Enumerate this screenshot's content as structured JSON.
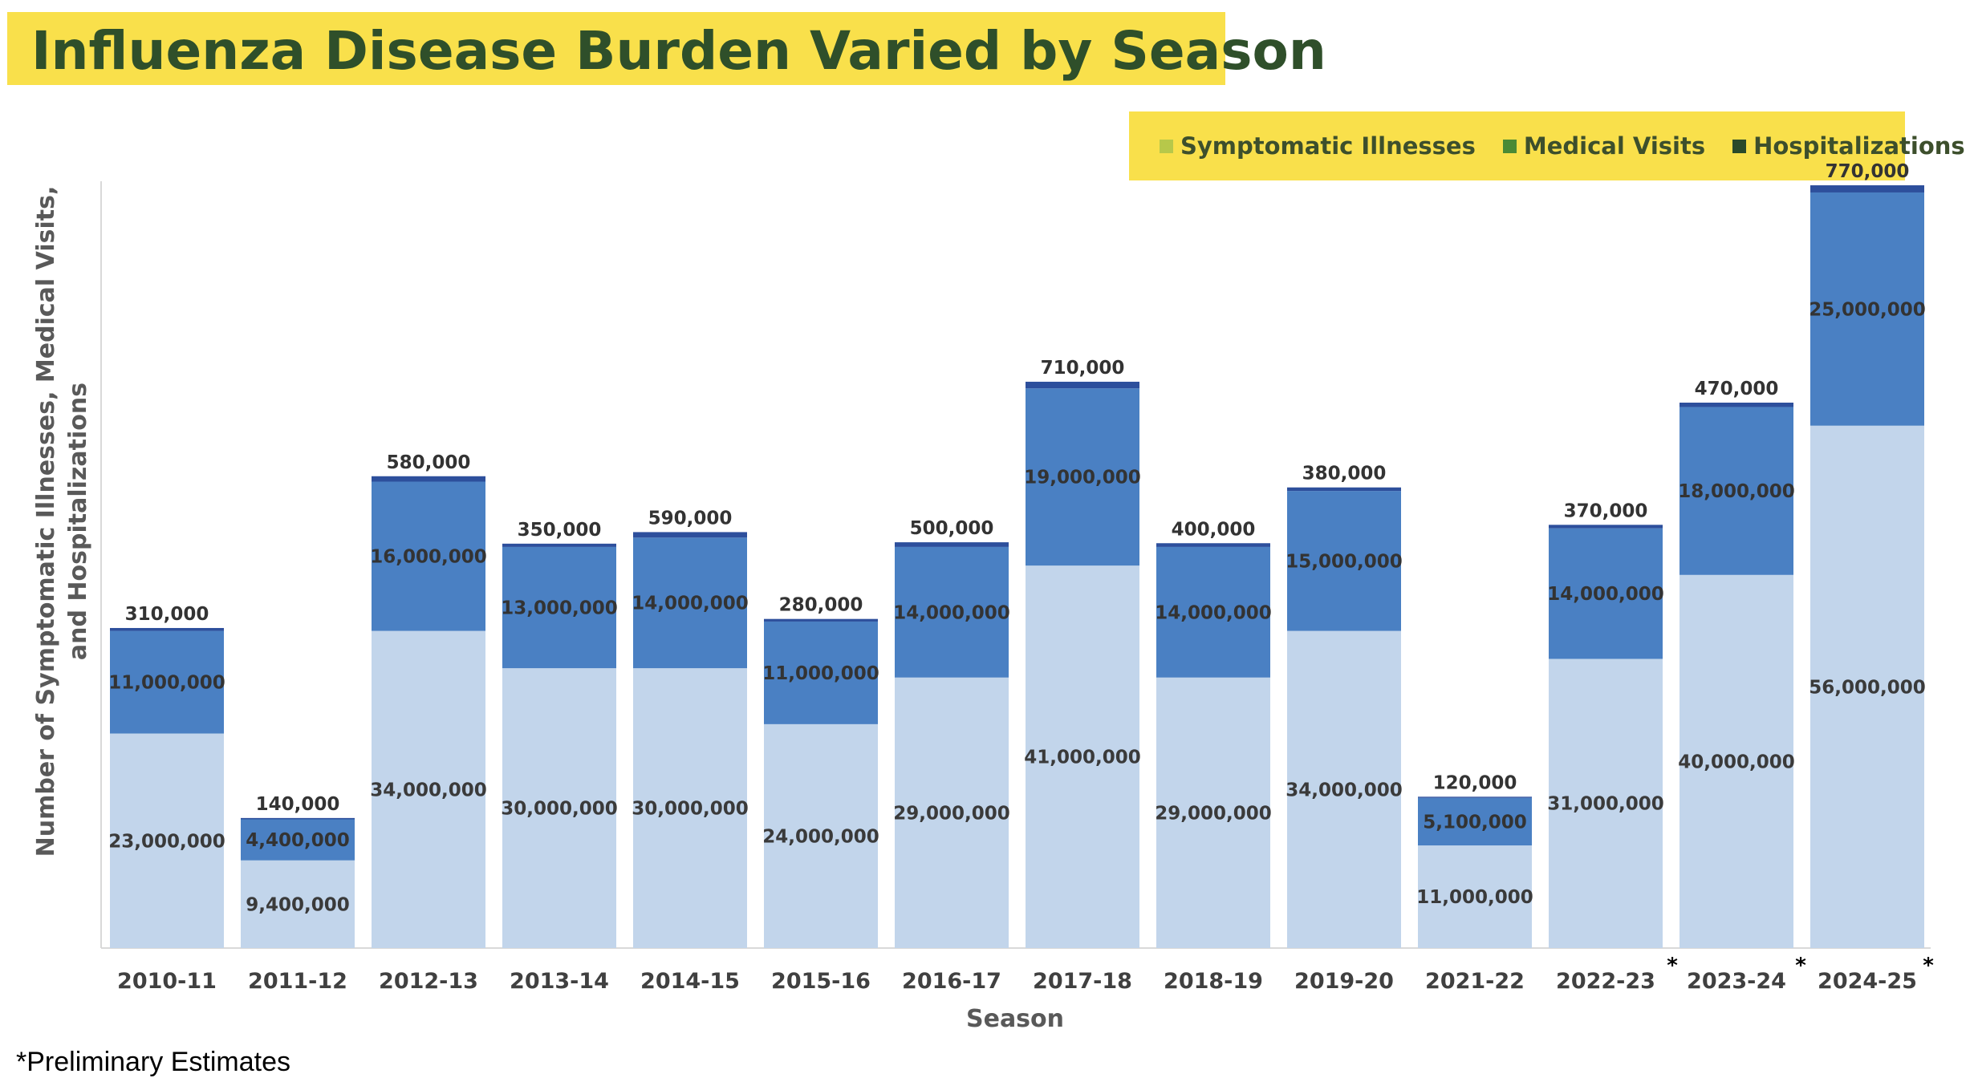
{
  "title": "Influenza Disease Burden Varied by Season",
  "legend": [
    {
      "label": "Symptomatic Illnesses",
      "color": "#b7c84a"
    },
    {
      "label": "Medical Visits",
      "color": "#4a8a35"
    },
    {
      "label": "Hospitalizations",
      "color": "#2a4a2a"
    }
  ],
  "footnote": "*Preliminary Estimates",
  "chart_data": {
    "type": "bar",
    "stacked": true,
    "title": "Influenza Disease Burden Varied by Season",
    "xlabel": "Season",
    "ylabel": "Number of Symptomatic Illnesses, Medical Visits, and Hospitalizations",
    "categories": [
      "2010-11",
      "2011-12",
      "2012-13",
      "2013-14",
      "2014-15",
      "2015-16",
      "2016-17",
      "2017-18",
      "2018-19",
      "2019-20",
      "2021-22",
      "2022-23",
      "2023-24",
      "2024-25"
    ],
    "preliminary": [
      "2023-24",
      "2024-25"
    ],
    "series": [
      {
        "name": "Symptomatic Illnesses",
        "color": "#c2d5eb",
        "label_color": "#3a3a3a",
        "values": [
          23000000,
          9400000,
          34000000,
          30000000,
          30000000,
          24000000,
          29000000,
          41000000,
          29000000,
          34000000,
          11000000,
          31000000,
          40000000,
          56000000
        ],
        "labels": [
          "23,000,000",
          "9,400,000",
          "34,000,000",
          "30,000,000",
          "30,000,000",
          "24,000,000",
          "29,000,000",
          "41,000,000",
          "29,000,000",
          "34,000,000",
          "11,000,000",
          "31,000,000",
          "40,000,000",
          "56,000,000"
        ]
      },
      {
        "name": "Medical Visits",
        "color": "#4a80c3",
        "label_color": "#333333",
        "values": [
          11000000,
          4400000,
          16000000,
          13000000,
          14000000,
          11000000,
          14000000,
          19000000,
          14000000,
          15000000,
          5100000,
          14000000,
          18000000,
          25000000
        ],
        "labels": [
          "11,000,000",
          "4,400,000",
          "16,000,000",
          "13,000,000",
          "14,000,000",
          "11,000,000",
          "14,000,000",
          "19,000,000",
          "14,000,000",
          "15,000,000",
          "5,100,000",
          "14,000,000",
          "18,000,000",
          "25,000,000"
        ]
      },
      {
        "name": "Hospitalizations",
        "color": "#2d4f9c",
        "label_color": "#ffffff",
        "values": [
          310000,
          140000,
          580000,
          350000,
          590000,
          280000,
          500000,
          710000,
          400000,
          380000,
          120000,
          370000,
          470000,
          770000
        ],
        "labels": [
          "310,000",
          "140,000",
          "580,000",
          "350,000",
          "590,000",
          "280,000",
          "500,000",
          "710,000",
          "400,000",
          "380,000",
          "120,000",
          "370,000",
          "470,000",
          "770,000"
        ]
      }
    ],
    "legend_position": "top-right",
    "grid": false
  }
}
